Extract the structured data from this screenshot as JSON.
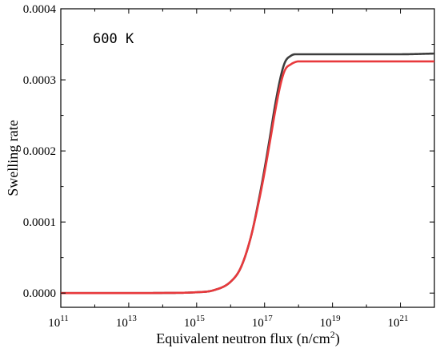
{
  "chart_data": {
    "type": "line",
    "annotation": "600 K",
    "xlabel_main": "Equivalent neutron flux (n/cm",
    "xlabel_sup": "2",
    "xlabel_tail": ")",
    "ylabel": "Swelling rate",
    "x_scale": "log10",
    "xlim": [
      100000000000.0,
      1e+22
    ],
    "ylim": [
      -2e-05,
      0.0004
    ],
    "x_ticks": [
      {
        "base": "10",
        "exp": "11",
        "value": 100000000000.0
      },
      {
        "base": "10",
        "exp": "13",
        "value": 10000000000000.0
      },
      {
        "base": "10",
        "exp": "15",
        "value": 1000000000000000.0
      },
      {
        "base": "10",
        "exp": "17",
        "value": 1e+17
      },
      {
        "base": "10",
        "exp": "19",
        "value": 1e+19
      },
      {
        "base": "10",
        "exp": "21",
        "value": 1e+21
      }
    ],
    "y_ticks": [
      {
        "label": "0.0000",
        "value": 0.0
      },
      {
        "label": "0.0001",
        "value": 0.0001
      },
      {
        "label": "0.0002",
        "value": 0.0002
      },
      {
        "label": "0.0003",
        "value": 0.0003
      },
      {
        "label": "0.0004",
        "value": 0.0004
      }
    ],
    "grid": false,
    "legend": "none",
    "series": [
      {
        "color": "#3d3d3d",
        "x": [
          100000000000.0,
          1000000000000.0,
          10000000000000.0,
          100000000000000.0,
          1000000000000000.0,
          3160000000000000.0,
          1e+16,
          2e+16,
          4e+16,
          7e+16,
          1e+17,
          1.5e+17,
          2e+17,
          3e+17,
          4e+17,
          6e+17,
          8e+17,
          1e+18,
          2e+18,
          1e+19,
          1e+20,
          1e+21,
          1e+22
        ],
        "y": [
          0.0,
          0.0,
          0.0,
          2e-07,
          1.2e-06,
          4e-06,
          1.6e-05,
          3.6e-05,
          8e-05,
          0.000135,
          0.000175,
          0.000225,
          0.000262,
          0.000305,
          0.000325,
          0.000334,
          0.000336,
          0.000336,
          0.000336,
          0.000336,
          0.000336,
          0.000336,
          0.000337
        ]
      },
      {
        "color": "#e8393c",
        "x": [
          100000000000.0,
          1000000000000.0,
          10000000000000.0,
          100000000000000.0,
          1000000000000000.0,
          3160000000000000.0,
          1e+16,
          2e+16,
          4e+16,
          7e+16,
          1e+17,
          1.5e+17,
          2e+17,
          3e+17,
          4e+17,
          6e+17,
          8e+17,
          1e+18,
          2e+18,
          1e+19,
          1e+20,
          1e+21,
          1e+22
        ],
        "y": [
          0.0,
          0.0,
          0.0,
          2e-07,
          1.2e-06,
          4e-06,
          1.6e-05,
          3.6e-05,
          8e-05,
          0.000132,
          0.00017,
          0.000218,
          0.000253,
          0.000295,
          0.000314,
          0.000322,
          0.000325,
          0.000326,
          0.000326,
          0.000326,
          0.000326,
          0.000326,
          0.000326
        ]
      }
    ]
  }
}
